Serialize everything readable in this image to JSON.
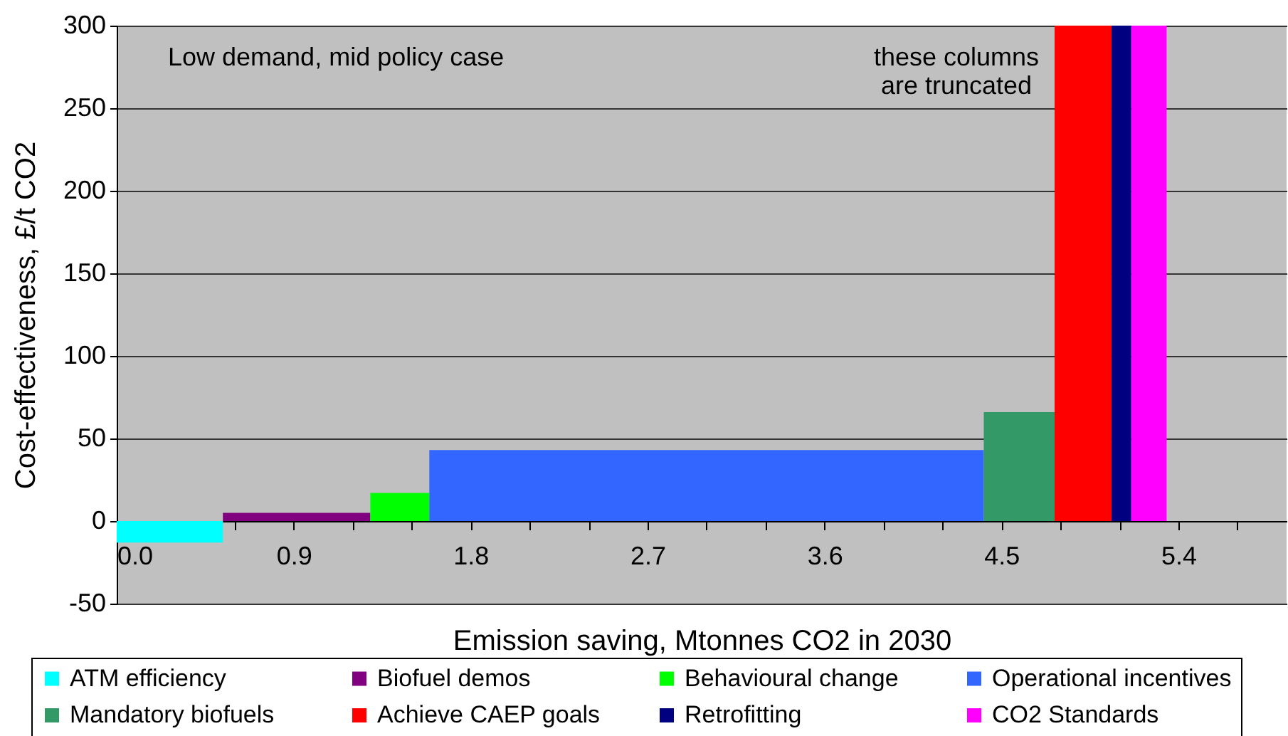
{
  "chart_data": {
    "type": "histogram",
    "xlabel": "Emission saving, Mtonnes CO2 in 2030",
    "ylabel": "Cost-effectiveness, £/t CO2",
    "bins": [
      0,
      0.54,
      1.29,
      1.59,
      4.41,
      4.77,
      5.06,
      5.16,
      5.34
    ],
    "series": [
      {
        "name": "ATM efficiency",
        "color": "#00ffff",
        "values": [
          -13,
          null,
          null,
          null,
          null,
          null,
          null,
          null
        ]
      },
      {
        "name": "Biofuel demos",
        "color": "#800080",
        "values": [
          null,
          5,
          null,
          null,
          null,
          null,
          null,
          null
        ]
      },
      {
        "name": "Behavioural change",
        "color": "#00ff00",
        "values": [
          null,
          null,
          17,
          null,
          null,
          null,
          null,
          null
        ]
      },
      {
        "name": "Operational incentives",
        "color": "#3366ff",
        "values": [
          null,
          null,
          null,
          43,
          null,
          null,
          null,
          null
        ]
      },
      {
        "name": "Mandatory biofuels",
        "color": "#339966",
        "values": [
          null,
          null,
          null,
          null,
          66,
          null,
          null,
          null
        ]
      },
      {
        "name": "Achieve CAEP goals",
        "color": "#ff0000",
        "values": [
          null,
          null,
          null,
          null,
          null,
          300,
          null,
          null
        ]
      },
      {
        "name": "Retrofitting",
        "color": "#000080",
        "values": [
          null,
          null,
          null,
          null,
          null,
          null,
          300,
          null
        ]
      },
      {
        "name": "CO2 Standards",
        "color": "#ff00ff",
        "values": [
          null,
          null,
          null,
          null,
          null,
          null,
          null,
          300
        ]
      }
    ],
    "xlim": [
      0,
      5.95
    ],
    "xticks": [
      {
        "value": 0,
        "label": "0.0"
      },
      {
        "value": 0.3,
        "label": null
      },
      {
        "value": 0.6,
        "label": null
      },
      0.9,
      {
        "value": 1.2,
        "label": null
      },
      {
        "value": 1.5,
        "label": null
      },
      1.8,
      {
        "value": 2.1,
        "label": null
      },
      {
        "value": 2.4,
        "label": null
      },
      2.7,
      {
        "value": 3,
        "label": null
      },
      {
        "value": 3.3,
        "label": null
      },
      3.6,
      {
        "value": 3.9,
        "label": null
      },
      {
        "value": 4.2,
        "label": null
      },
      4.5,
      {
        "value": 4.8,
        "label": null
      },
      {
        "value": 5.1,
        "label": null
      },
      5.4,
      {
        "value": 5.7,
        "label": null
      }
    ],
    "ylim": [
      -50,
      300
    ],
    "yticks": [
      -50,
      0,
      50,
      100,
      150,
      200,
      250,
      300
    ],
    "grid": "y",
    "legend": "bottom",
    "annotations": [
      "Low demand, mid policy case",
      "these columns\nare truncated"
    ]
  }
}
